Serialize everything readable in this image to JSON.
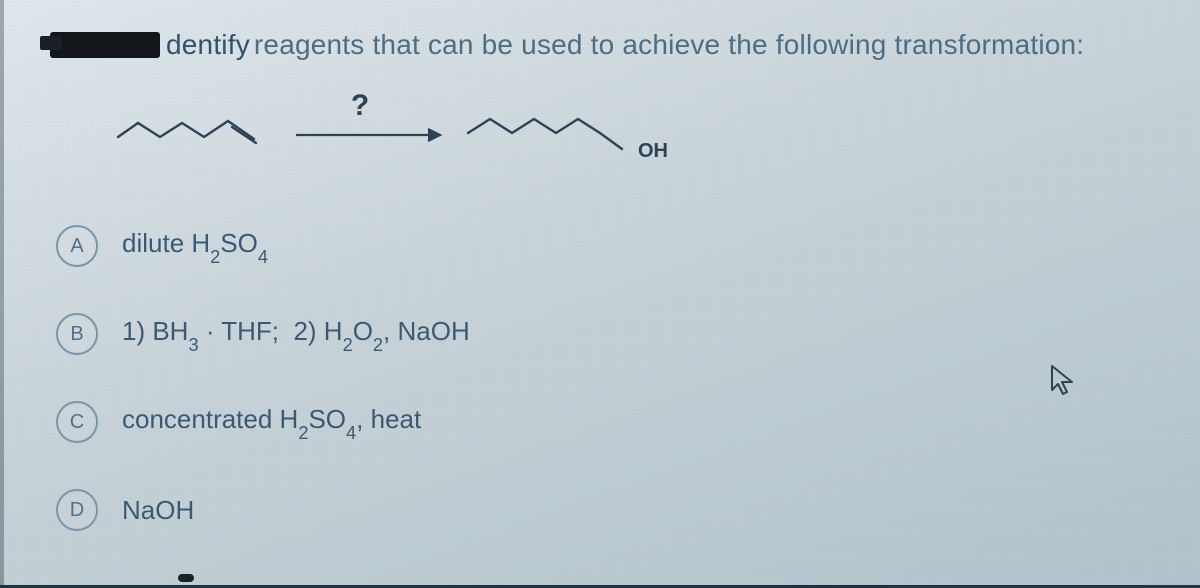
{
  "question": {
    "word1": "dentify",
    "rest": " reagents that can be used to achieve the following transformation:"
  },
  "reaction": {
    "arrow_label": "?",
    "product_label": "OH"
  },
  "options": [
    {
      "letter": "A",
      "html": "dilute H<sub>2</sub>SO<sub>4</sub>"
    },
    {
      "letter": "B",
      "html": "1) BH<sub>3</sub> · THF;&nbsp;&nbsp;2) H<sub>2</sub>O<sub>2</sub>, NaOH"
    },
    {
      "letter": "C",
      "html": "concentrated H<sub>2</sub>SO<sub>4</sub>, heat"
    },
    {
      "letter": "D",
      "html": "NaOH"
    }
  ],
  "colors": {
    "text": "#3e5a72",
    "bubble_border": "#7a97aa",
    "stroke": "#2e4356"
  }
}
